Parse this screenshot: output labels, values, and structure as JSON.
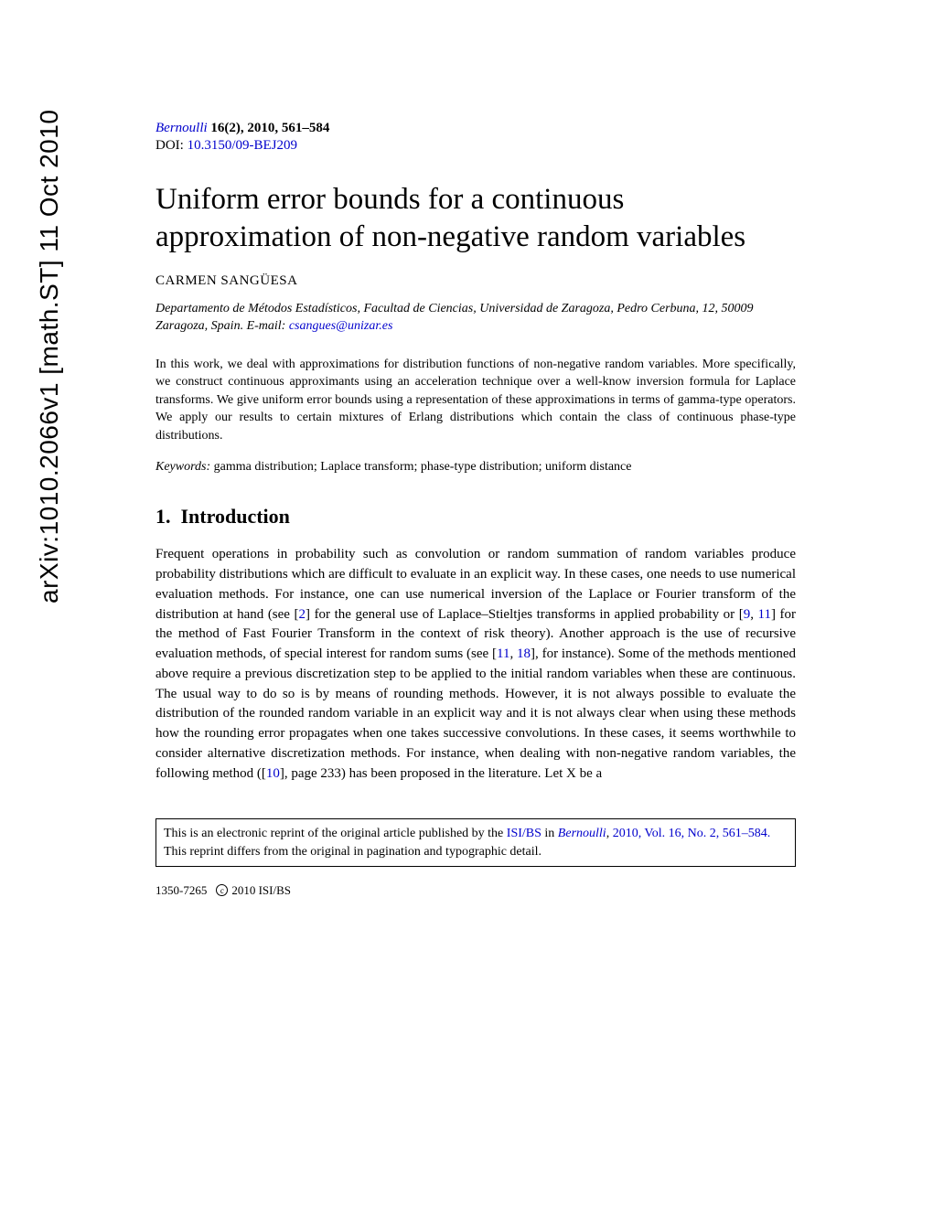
{
  "arxiv": {
    "id": "arXiv:1010.2066v1 [math.ST] 11 Oct 2010"
  },
  "header": {
    "journal_name": "Bernoulli",
    "journal_ref": " 16(2), 2010, 561–584",
    "doi_label": "DOI: ",
    "doi": "10.3150/09-BEJ209"
  },
  "title": "Uniform error bounds for a continuous approximation of non-negative random variables",
  "author": "CARMEN SANGÜESA",
  "affiliation": {
    "text_before": "Departamento de Métodos Estadísticos, Facultad de Ciencias, Universidad de Zaragoza, Pedro Cerbuna, 12, 50009 Zaragoza, Spain. E-mail: ",
    "email": "csangues@unizar.es"
  },
  "abstract": "In this work, we deal with approximations for distribution functions of non-negative random variables. More specifically, we construct continuous approximants using an acceleration technique over a well-know inversion formula for Laplace transforms. We give uniform error bounds using a representation of these approximations in terms of gamma-type operators. We apply our results to certain mixtures of Erlang distributions which contain the class of continuous phase-type distributions.",
  "keywords": {
    "label": "Keywords:",
    "text": " gamma distribution; Laplace transform; phase-type distribution; uniform distance"
  },
  "section": {
    "number": "1.",
    "title": "Introduction"
  },
  "body": {
    "p1a": "Frequent operations in probability such as convolution or random summation of random variables produce probability distributions which are difficult to evaluate in an explicit way. In these cases, one needs to use numerical evaluation methods. For instance, one can use numerical inversion of the Laplace or Fourier transform of the distribution at hand (see [",
    "ref2": "2",
    "p1b": "] for the general use of Laplace–Stieltjes transforms in applied probability or [",
    "ref9": "9",
    "p1c": ", ",
    "ref11a": "11",
    "p1d": "] for the method of Fast Fourier Transform in the context of risk theory). Another approach is the use of recursive evaluation methods, of special interest for random sums (see [",
    "ref11b": "11",
    "p1e": ", ",
    "ref18": "18",
    "p1f": "], for instance). Some of the methods mentioned above require a previous discretization step to be applied to the initial random variables when these are continuous. The usual way to do so is by means of rounding methods. However, it is not always possible to evaluate the distribution of the rounded random variable in an explicit way and it is not always clear when using these methods how the rounding error propagates when one takes successive convolutions. In these cases, it seems worthwhile to consider alternative discretization methods. For instance, when dealing with non-negative random variables, the following method ([",
    "ref10": "10",
    "p1g": "], page 233) has been proposed in the literature. Let X be a"
  },
  "reprint": {
    "text_a": "This is an electronic reprint of the original article published by the ",
    "isi_bs": "ISI/BS",
    "text_b": " in ",
    "journal": "Bernoulli",
    "text_c": ", ",
    "vol_info": "2010, Vol. 16, No. 2, 561–584.",
    "text_d": " This reprint differs from the original in pagination and typographic detail."
  },
  "footer": {
    "issn": "1350-7265",
    "copyright_c": "c",
    "copyright_text": "2010 ISI/BS"
  },
  "colors": {
    "link": "#0000cc",
    "text": "#000000",
    "bg": "#ffffff"
  }
}
